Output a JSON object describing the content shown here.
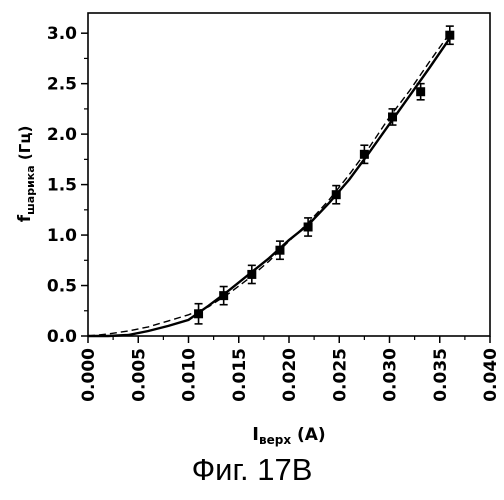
{
  "chart_data": {
    "type": "scatter",
    "caption": "Фиг. 17B",
    "xlabel": {
      "main": "I",
      "sub": "верх",
      "rest": " (A)"
    },
    "ylabel": {
      "main": "f",
      "sub": "шарика",
      "rest": " (Гц)"
    },
    "xlim": [
      0.0,
      0.04
    ],
    "ylim": [
      0.0,
      3.2
    ],
    "x_ticks": [
      "0.000",
      "0.005",
      "0.010",
      "0.015",
      "0.020",
      "0.025",
      "0.030",
      "0.035",
      "0.040"
    ],
    "x_tick_values": [
      0.0,
      0.005,
      0.01,
      0.015,
      0.02,
      0.025,
      0.03,
      0.035,
      0.04
    ],
    "y_ticks": [
      "0.0",
      "0.5",
      "1.0",
      "1.5",
      "2.0",
      "2.5",
      "3.0"
    ],
    "y_tick_values": [
      0.0,
      0.5,
      1.0,
      1.5,
      2.0,
      2.5,
      3.0
    ],
    "grid": false,
    "points": [
      {
        "x": 0.011,
        "y": 0.22,
        "err": 0.1
      },
      {
        "x": 0.0135,
        "y": 0.4,
        "err": 0.09
      },
      {
        "x": 0.0163,
        "y": 0.61,
        "err": 0.09
      },
      {
        "x": 0.0191,
        "y": 0.85,
        "err": 0.09
      },
      {
        "x": 0.0219,
        "y": 1.08,
        "err": 0.09
      },
      {
        "x": 0.0247,
        "y": 1.4,
        "err": 0.09
      },
      {
        "x": 0.0275,
        "y": 1.8,
        "err": 0.09
      },
      {
        "x": 0.0303,
        "y": 2.17,
        "err": 0.08
      },
      {
        "x": 0.0331,
        "y": 2.42,
        "err": 0.08
      },
      {
        "x": 0.036,
        "y": 2.98,
        "err": 0.09
      }
    ],
    "fit_solid": [
      [
        0.0,
        0.0
      ],
      [
        0.002,
        0.0
      ],
      [
        0.004,
        0.01
      ],
      [
        0.006,
        0.05
      ],
      [
        0.008,
        0.1
      ],
      [
        0.01,
        0.16
      ],
      [
        0.012,
        0.3
      ],
      [
        0.014,
        0.45
      ],
      [
        0.016,
        0.61
      ],
      [
        0.018,
        0.77
      ],
      [
        0.02,
        0.95
      ],
      [
        0.022,
        1.11
      ],
      [
        0.024,
        1.32
      ],
      [
        0.026,
        1.55
      ],
      [
        0.028,
        1.82
      ],
      [
        0.03,
        2.1
      ],
      [
        0.032,
        2.38
      ],
      [
        0.034,
        2.66
      ],
      [
        0.036,
        2.95
      ]
    ],
    "fit_dashed": [
      [
        0.0,
        0.0
      ],
      [
        0.002,
        0.02
      ],
      [
        0.004,
        0.05
      ],
      [
        0.006,
        0.09
      ],
      [
        0.008,
        0.15
      ],
      [
        0.01,
        0.21
      ],
      [
        0.012,
        0.29
      ],
      [
        0.014,
        0.42
      ],
      [
        0.016,
        0.57
      ],
      [
        0.018,
        0.74
      ],
      [
        0.02,
        0.94
      ],
      [
        0.022,
        1.13
      ],
      [
        0.024,
        1.35
      ],
      [
        0.026,
        1.6
      ],
      [
        0.028,
        1.87
      ],
      [
        0.03,
        2.17
      ],
      [
        0.032,
        2.43
      ],
      [
        0.034,
        2.72
      ],
      [
        0.036,
        3.0
      ]
    ]
  }
}
